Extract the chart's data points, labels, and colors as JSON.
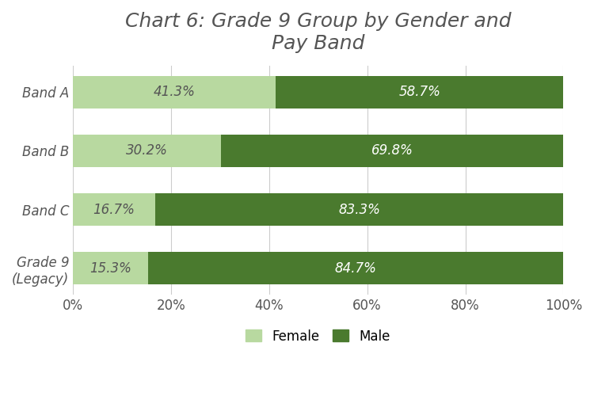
{
  "title": "Chart 6: Grade 9 Group by Gender and\nPay Band",
  "categories": [
    "Band A",
    "Band B",
    "Band C",
    "Grade 9\n(Legacy)"
  ],
  "female_values": [
    41.3,
    30.2,
    16.7,
    15.3
  ],
  "male_values": [
    58.7,
    69.8,
    83.3,
    84.7
  ],
  "female_color": "#b8d9a0",
  "male_color": "#4a7a2e",
  "female_label": "Female",
  "male_label": "Male",
  "xlim": [
    0,
    100
  ],
  "xtick_labels": [
    "0%",
    "20%",
    "40%",
    "60%",
    "80%",
    "100%"
  ],
  "xtick_values": [
    0,
    20,
    40,
    60,
    80,
    100
  ],
  "bar_height": 0.55,
  "title_fontsize": 18,
  "label_fontsize": 12,
  "tick_fontsize": 12,
  "legend_fontsize": 12,
  "background_color": "#ffffff",
  "grid_color": "#cccccc",
  "text_color": "#555555",
  "female_text_color": "#555555",
  "male_text_color": "#ffffff"
}
